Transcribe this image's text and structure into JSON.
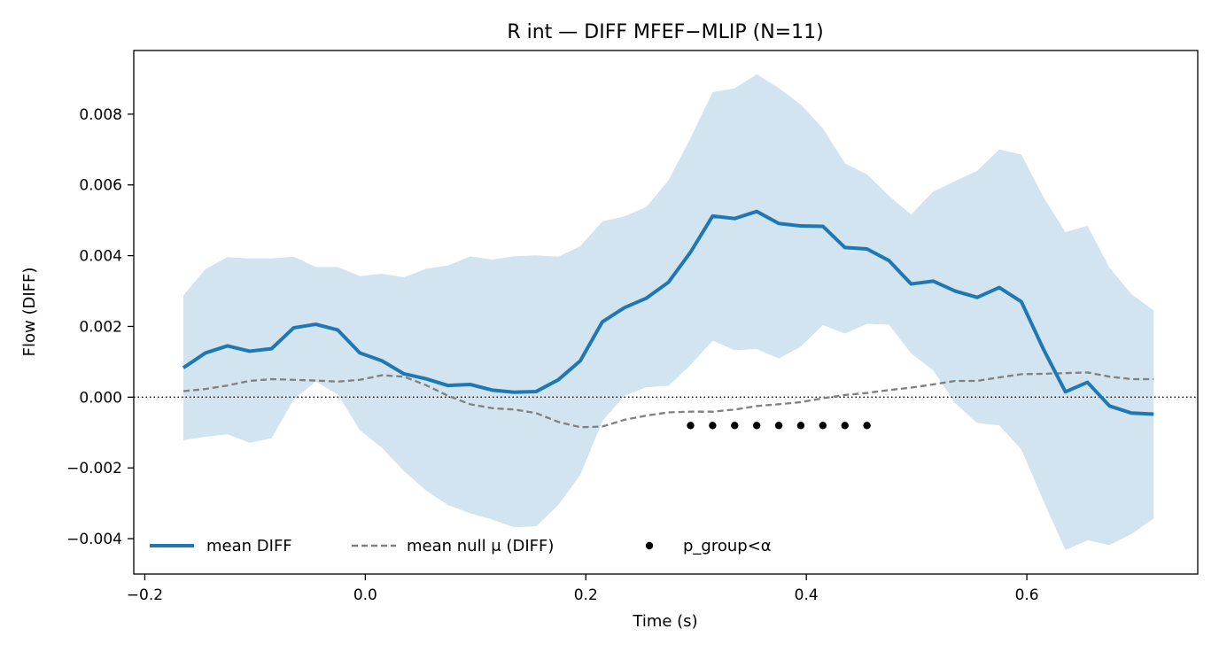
{
  "chart_data": {
    "type": "line",
    "title": "R int — DIFF MFEF−MLIP (N=11)",
    "xlabel": "Time (s)",
    "ylabel": "Flow (DIFF)",
    "xlim": [
      -0.21,
      0.755
    ],
    "ylim": [
      -0.005,
      0.0098
    ],
    "x_ticks": [
      -0.2,
      0.0,
      0.2,
      0.4,
      0.6
    ],
    "x_tick_labels": [
      "−0.2",
      "0.0",
      "0.2",
      "0.4",
      "0.6"
    ],
    "y_ticks": [
      -0.004,
      -0.002,
      0.0,
      0.002,
      0.004,
      0.006,
      0.008
    ],
    "y_tick_labels": [
      "−0.004",
      "−0.002",
      "0.000",
      "0.002",
      "0.004",
      "0.006",
      "0.008"
    ],
    "reference_line_y": 0.0,
    "legend_placement": "lower-left",
    "x": [
      -0.165,
      -0.145,
      -0.125,
      -0.105,
      -0.085,
      -0.065,
      -0.045,
      -0.025,
      -0.005,
      0.015,
      0.035,
      0.055,
      0.075,
      0.095,
      0.115,
      0.135,
      0.155,
      0.175,
      0.195,
      0.215,
      0.235,
      0.255,
      0.275,
      0.295,
      0.315,
      0.335,
      0.355,
      0.375,
      0.395,
      0.415,
      0.435,
      0.455,
      0.475,
      0.495,
      0.515,
      0.535,
      0.555,
      0.575,
      0.595,
      0.615,
      0.635,
      0.655,
      0.675,
      0.695,
      0.715
    ],
    "series": [
      {
        "name": "mean DIFF",
        "style": "solid",
        "color": "#1f77b4",
        "values": [
          0.00083,
          0.00125,
          0.00145,
          0.0013,
          0.00137,
          0.00196,
          0.00206,
          0.0019,
          0.00125,
          0.00103,
          0.00066,
          0.00052,
          0.00033,
          0.00036,
          0.0002,
          0.00014,
          0.00016,
          0.00049,
          0.00103,
          0.00213,
          0.00253,
          0.0028,
          0.00325,
          0.0041,
          0.00512,
          0.00505,
          0.00525,
          0.00491,
          0.00484,
          0.00483,
          0.00423,
          0.00419,
          0.00386,
          0.0032,
          0.00328,
          0.003,
          0.00282,
          0.0031,
          0.0027,
          0.00136,
          0.00015,
          0.00042,
          -0.00025,
          -0.00045,
          -0.00048
        ]
      },
      {
        "name": "mean null μ (DIFF)",
        "style": "dashed",
        "color": "#808080",
        "values": [
          0.00017,
          0.00023,
          0.00033,
          0.00046,
          0.00051,
          0.00049,
          0.00047,
          0.00044,
          0.00049,
          0.00062,
          0.00058,
          0.00034,
          4e-05,
          -0.0002,
          -0.00031,
          -0.00035,
          -0.00045,
          -0.0007,
          -0.00085,
          -0.00083,
          -0.00064,
          -0.00052,
          -0.00043,
          -0.00041,
          -0.00041,
          -0.00035,
          -0.00025,
          -0.0002,
          -0.00014,
          -3e-05,
          6e-05,
          0.00012,
          0.0002,
          0.00027,
          0.00036,
          0.00046,
          0.00046,
          0.00056,
          0.00065,
          0.00066,
          0.00068,
          0.0007,
          0.00058,
          0.00051,
          0.00051
        ]
      }
    ],
    "band": {
      "color": "#1f77b4",
      "opacity": 0.2,
      "lower": [
        -0.00122,
        -0.00112,
        -0.00105,
        -0.00129,
        -0.00116,
        -7e-05,
        0.00044,
        8e-05,
        -0.00093,
        -0.00143,
        -0.00209,
        -0.00264,
        -0.00305,
        -0.00328,
        -0.00346,
        -0.00368,
        -0.00365,
        -0.00305,
        -0.0022,
        -0.00068,
        4e-05,
        0.00028,
        0.00032,
        0.00091,
        0.0016,
        0.00133,
        0.00136,
        0.00109,
        0.00143,
        0.00204,
        0.0018,
        0.00207,
        0.00205,
        0.00124,
        0.00076,
        -0.00017,
        -0.00073,
        -0.0008,
        -0.00148,
        -0.00293,
        -0.00432,
        -0.00405,
        -0.00418,
        -0.00387,
        -0.00343
      ],
      "upper": [
        0.00288,
        0.00362,
        0.00396,
        0.00392,
        0.00392,
        0.00397,
        0.00368,
        0.00368,
        0.00342,
        0.00349,
        0.00339,
        0.00363,
        0.00372,
        0.00398,
        0.00389,
        0.00398,
        0.00401,
        0.00397,
        0.00427,
        0.00497,
        0.00511,
        0.00538,
        0.00613,
        0.00733,
        0.00862,
        0.00873,
        0.00913,
        0.00874,
        0.00827,
        0.0076,
        0.00661,
        0.0063,
        0.00569,
        0.00516,
        0.00581,
        0.00611,
        0.0064,
        0.007,
        0.00686,
        0.00566,
        0.00467,
        0.00484,
        0.00366,
        0.00291,
        0.00245
      ]
    },
    "significance": {
      "name": "p_group<α",
      "color": "#000000",
      "x": [
        0.295,
        0.315,
        0.335,
        0.355,
        0.375,
        0.395,
        0.415,
        0.435,
        0.455
      ],
      "y": [
        -0.0008,
        -0.0008,
        -0.0008,
        -0.0008,
        -0.0008,
        -0.0008,
        -0.0008,
        -0.0008,
        -0.0008
      ]
    }
  }
}
